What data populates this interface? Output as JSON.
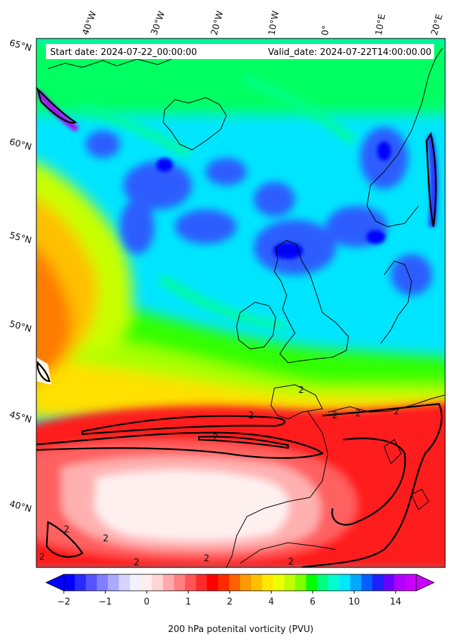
{
  "header": {
    "start_date": "Start date: 2024-07-22_00:00:00",
    "valid_date": "Valid_date: 2024-07-22T14:00:00.00"
  },
  "axes": {
    "lon_labels": [
      "40°W",
      "30°W",
      "20°W",
      "10°W",
      "0°",
      "10°E",
      "20°E"
    ],
    "lat_labels": [
      "65°N",
      "60°N",
      "55°N",
      "50°N",
      "45°N",
      "40°N"
    ]
  },
  "contour": {
    "level_label": "2"
  },
  "colorbar": {
    "label": "200 hPa potenital vorticity (PVU)",
    "ticks": [
      "−2",
      "−1",
      "0",
      "1",
      "2",
      "4",
      "6",
      "10",
      "14"
    ],
    "colors": [
      "#0000ff",
      "#2a2aff",
      "#5555ff",
      "#7f7fff",
      "#aaaaff",
      "#d4d4ff",
      "#f2f2ff",
      "#ffeeee",
      "#ffd4d4",
      "#ffaaaa",
      "#ff8080",
      "#ff5555",
      "#ff2a2a",
      "#ff0000",
      "#ff2a00",
      "#ff6000",
      "#ff9900",
      "#ffc000",
      "#ffe800",
      "#eeff00",
      "#c0ff00",
      "#80ff00",
      "#00ff00",
      "#00ff80",
      "#00ffd0",
      "#00e8ff",
      "#00a8ff",
      "#0060ff",
      "#2020ff",
      "#6a00ff",
      "#b000ff",
      "#c800ff"
    ]
  },
  "map": {
    "ocean_color": "#00e5ff",
    "high_pv_color": "#ff2020"
  }
}
